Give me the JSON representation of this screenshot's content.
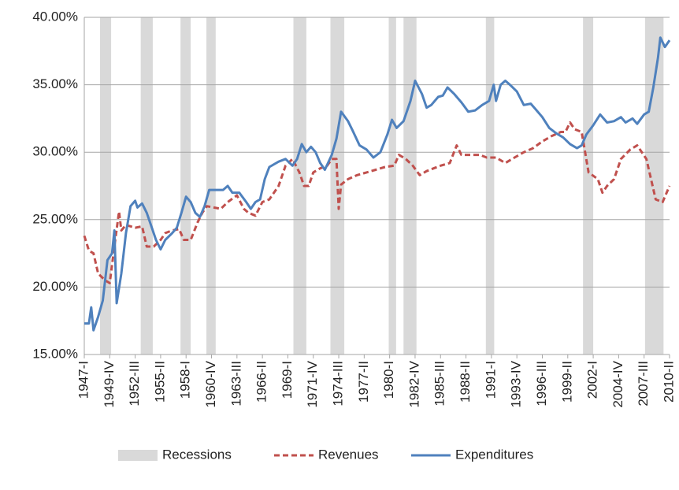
{
  "chart_data": {
    "type": "line",
    "xlim": [
      1947,
      2010.25
    ],
    "xticks": [
      {
        "value": 1947,
        "label": "1947-I"
      },
      {
        "value": 1949.75,
        "label": "1949-IV"
      },
      {
        "value": 1952.5,
        "label": "1952-III"
      },
      {
        "value": 1955.25,
        "label": "1955-II"
      },
      {
        "value": 1958,
        "label": "1958-I"
      },
      {
        "value": 1960.75,
        "label": "1960-IV"
      },
      {
        "value": 1963.5,
        "label": "1963-III"
      },
      {
        "value": 1966.25,
        "label": "1966-II"
      },
      {
        "value": 1969,
        "label": "1969-I"
      },
      {
        "value": 1971.75,
        "label": "1971-IV"
      },
      {
        "value": 1974.5,
        "label": "1974-III"
      },
      {
        "value": 1977.25,
        "label": "1977-II"
      },
      {
        "value": 1980,
        "label": "1980-I"
      },
      {
        "value": 1982.75,
        "label": "1982-IV"
      },
      {
        "value": 1985.5,
        "label": "1985-III"
      },
      {
        "value": 1988.25,
        "label": "1988-II"
      },
      {
        "value": 1991,
        "label": "1991-I"
      },
      {
        "value": 1993.75,
        "label": "1993-IV"
      },
      {
        "value": 1996.5,
        "label": "1996-III"
      },
      {
        "value": 1999.25,
        "label": "1999-II"
      },
      {
        "value": 2002,
        "label": "2002-I"
      },
      {
        "value": 2004.75,
        "label": "2004-IV"
      },
      {
        "value": 2007.5,
        "label": "2007-III"
      },
      {
        "value": 2010.25,
        "label": "2010-II"
      }
    ],
    "ylim": [
      15,
      40
    ],
    "yticks": [
      {
        "value": 15,
        "label": "15.00%"
      },
      {
        "value": 20,
        "label": "20.00%"
      },
      {
        "value": 25,
        "label": "25.00%"
      },
      {
        "value": 30,
        "label": "30.00%"
      },
      {
        "value": 35,
        "label": "35.00%"
      },
      {
        "value": 40,
        "label": "40.00%"
      }
    ],
    "grid": true,
    "recessions": {
      "name": "Recessions",
      "color": "#d9d9d9",
      "spans": [
        [
          1948.7,
          1949.9
        ],
        [
          1953.1,
          1954.4
        ],
        [
          1957.4,
          1958.5
        ],
        [
          1960.2,
          1961.2
        ],
        [
          1969.6,
          1971.0
        ],
        [
          1973.6,
          1975.1
        ],
        [
          1979.9,
          1980.7
        ],
        [
          1981.5,
          1982.9
        ],
        [
          1990.4,
          1991.3
        ],
        [
          2000.9,
          2002.0
        ],
        [
          2007.6,
          2009.6
        ]
      ]
    },
    "series": [
      {
        "name": "Revenues",
        "color": "#c0504d",
        "dashed": true,
        "x": [
          1947,
          1947.5,
          1948,
          1948.5,
          1949.25,
          1949.75,
          1950.25,
          1950.75,
          1951,
          1951.5,
          1952.5,
          1953.25,
          1953.75,
          1954.5,
          1955.25,
          1955.75,
          1956.5,
          1957.25,
          1957.75,
          1958.5,
          1959.25,
          1959.75,
          1960.25,
          1961,
          1961.75,
          1962.5,
          1963.5,
          1964.25,
          1964.75,
          1965.5,
          1966.25,
          1967,
          1968,
          1968.75,
          1969.5,
          1970.25,
          1970.75,
          1971.25,
          1971.75,
          1972.5,
          1973.25,
          1973.75,
          1974.25,
          1974.5,
          1974.75,
          1975.5,
          1976.5,
          1977.5,
          1978.5,
          1979.5,
          1980.5,
          1981,
          1981.75,
          1982.5,
          1983.25,
          1984,
          1984.75,
          1985.5,
          1986.5,
          1987.25,
          1987.75,
          1988.75,
          1989.75,
          1990.5,
          1991.5,
          1992.5,
          1993.5,
          1994.5,
          1995.5,
          1996.5,
          1997.5,
          1998.5,
          1999,
          1999.5,
          2000,
          2000.75,
          2001.5,
          2002.5,
          2003,
          2003.5,
          2004.25,
          2005,
          2006,
          2006.75,
          2007.75,
          2008.25,
          2008.75,
          2009.5,
          2010.25
        ],
        "values": [
          23.8,
          22.7,
          22.5,
          21,
          20.5,
          20.3,
          23,
          25.6,
          24.2,
          24.6,
          24.4,
          24.5,
          23,
          23,
          23.5,
          24,
          24.2,
          24.3,
          23.5,
          23.5,
          24.8,
          25.5,
          26,
          25.9,
          25.8,
          26.3,
          26.8,
          25.8,
          25.5,
          25.3,
          26.3,
          26.5,
          27.5,
          29,
          29.5,
          28.5,
          27.5,
          27.5,
          28.5,
          28.8,
          29,
          29.5,
          29.5,
          25.8,
          27.6,
          28,
          28.3,
          28.5,
          28.7,
          28.9,
          29,
          29.8,
          29.5,
          29,
          28.3,
          28.6,
          28.8,
          29,
          29.2,
          30.5,
          29.8,
          29.8,
          29.8,
          29.6,
          29.6,
          29.2,
          29.6,
          30,
          30.3,
          30.8,
          31.2,
          31.5,
          31.5,
          32.2,
          31.7,
          31.5,
          28.5,
          28,
          27,
          27.5,
          28,
          29.5,
          30.2,
          30.5,
          29.5,
          28,
          26.5,
          26.3,
          27.5
        ]
      },
      {
        "name": "Expenditures",
        "color": "#4f81bd",
        "dashed": false,
        "x": [
          1947,
          1947.5,
          1947.75,
          1948,
          1948.5,
          1949,
          1949.5,
          1950,
          1950.25,
          1950.5,
          1951,
          1951.5,
          1952,
          1952.5,
          1952.75,
          1953.25,
          1953.75,
          1954.25,
          1954.75,
          1955.25,
          1955.75,
          1956.5,
          1957,
          1957.5,
          1958,
          1958.5,
          1959,
          1959.5,
          1960,
          1960.5,
          1961,
          1962,
          1962.5,
          1963,
          1963.75,
          1964.5,
          1965,
          1965.5,
          1966,
          1966.5,
          1967,
          1968,
          1968.75,
          1969.5,
          1970,
          1970.5,
          1971,
          1971.5,
          1972,
          1972.5,
          1973,
          1973.75,
          1974.25,
          1974.75,
          1975.5,
          1976,
          1976.75,
          1977.5,
          1978.25,
          1979,
          1979.75,
          1980.25,
          1980.75,
          1981.5,
          1982.25,
          1982.75,
          1983.5,
          1984,
          1984.5,
          1985.25,
          1985.75,
          1986.25,
          1987,
          1987.75,
          1988.5,
          1989.25,
          1990,
          1990.75,
          1991.25,
          1991.5,
          1992,
          1992.5,
          1993,
          1993.75,
          1994.5,
          1995.25,
          1995.75,
          1996.5,
          1997.25,
          1998,
          1998.75,
          1999.5,
          2000.25,
          2000.75,
          2001.25,
          2002,
          2002.75,
          2003.5,
          2004.25,
          2005,
          2005.5,
          2006.25,
          2006.75,
          2007.5,
          2008,
          2008.5,
          2009,
          2009.25,
          2009.75,
          2010.25
        ],
        "values": [
          17.3,
          17.3,
          18.5,
          16.8,
          17.8,
          19,
          22,
          22.5,
          24.2,
          18.8,
          21,
          24,
          26,
          26.4,
          25.9,
          26.2,
          25.5,
          24.5,
          23.5,
          22.8,
          23.5,
          24,
          24.4,
          25.5,
          26.7,
          26.3,
          25.5,
          25.2,
          26,
          27.2,
          27.2,
          27.2,
          27.5,
          27,
          27,
          26.3,
          25.8,
          26.3,
          26.5,
          28,
          28.9,
          29.3,
          29.5,
          29,
          29.5,
          30.6,
          30,
          30.4,
          30,
          29.2,
          28.7,
          29.8,
          31,
          33,
          32.3,
          31.6,
          30.5,
          30.2,
          29.6,
          30,
          31.3,
          32.4,
          31.8,
          32.3,
          33.8,
          35.3,
          34.3,
          33.3,
          33.5,
          34.1,
          34.2,
          34.8,
          34.3,
          33.7,
          33,
          33.1,
          33.5,
          33.8,
          35,
          33.8,
          35,
          35.3,
          35,
          34.5,
          33.5,
          33.6,
          33.2,
          32.6,
          31.8,
          31.4,
          31.1,
          30.6,
          30.3,
          30.5,
          31.3,
          32,
          32.8,
          32.2,
          32.3,
          32.6,
          32.2,
          32.5,
          32.1,
          32.8,
          33,
          34.8,
          37,
          38.5,
          37.8,
          38.3
        ]
      }
    ]
  }
}
